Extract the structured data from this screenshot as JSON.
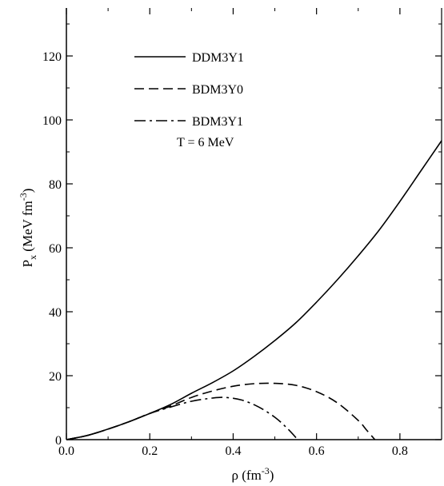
{
  "chart_data": {
    "type": "line",
    "xlabel": "ρ (fm",
    "xlabel_sup": "-3",
    "xlabel_close": ")",
    "ylabel_main": "P",
    "ylabel_sub": "x",
    "ylabel_rest": " (MeV fm",
    "ylabel_sup": "-3",
    "ylabel_close": ")",
    "xlim": [
      0.0,
      0.9
    ],
    "ylim": [
      0,
      135
    ],
    "xticks": [
      0.0,
      0.2,
      0.4,
      0.6,
      0.8
    ],
    "xtick_labels": [
      "0.0",
      "0.2",
      "0.4",
      "0.6",
      "0.8"
    ],
    "yticks": [
      0,
      20,
      40,
      60,
      80,
      100,
      120
    ],
    "ytick_labels": [
      "0",
      "20",
      "40",
      "60",
      "80",
      "100",
      "120"
    ],
    "annotation": "T = 6 MeV",
    "legend_position": "top-left",
    "series": [
      {
        "name": "DDM3Y1",
        "dash": "solid",
        "x": [
          0.0,
          0.05,
          0.1,
          0.15,
          0.2,
          0.25,
          0.3,
          0.35,
          0.4,
          0.45,
          0.5,
          0.55,
          0.6,
          0.65,
          0.7,
          0.75,
          0.8,
          0.85,
          0.9
        ],
        "y": [
          0,
          1.3,
          3.3,
          5.6,
          8.2,
          11.0,
          14.5,
          17.8,
          21.5,
          26.0,
          31.0,
          36.5,
          43.0,
          50.0,
          57.5,
          65.5,
          74.5,
          84.0,
          93.5
        ]
      },
      {
        "name": "BDM3Y0",
        "dash": "dashed",
        "x": [
          0.0,
          0.05,
          0.1,
          0.15,
          0.2,
          0.25,
          0.3,
          0.35,
          0.4,
          0.45,
          0.5,
          0.55,
          0.6,
          0.65,
          0.7,
          0.72,
          0.74
        ],
        "y": [
          0,
          1.3,
          3.3,
          5.6,
          8.2,
          10.5,
          13.2,
          15.2,
          16.7,
          17.5,
          17.6,
          17.0,
          15.0,
          11.5,
          6.0,
          3.0,
          0
        ]
      },
      {
        "name": "BDM3Y1",
        "dash": "dashdot",
        "x": [
          0.0,
          0.05,
          0.1,
          0.15,
          0.2,
          0.25,
          0.3,
          0.35,
          0.38,
          0.42,
          0.46,
          0.5,
          0.53,
          0.555
        ],
        "y": [
          0,
          1.3,
          3.3,
          5.6,
          8.2,
          10.2,
          12.0,
          13.0,
          13.2,
          12.4,
          10.3,
          7.0,
          3.5,
          0
        ]
      }
    ]
  }
}
